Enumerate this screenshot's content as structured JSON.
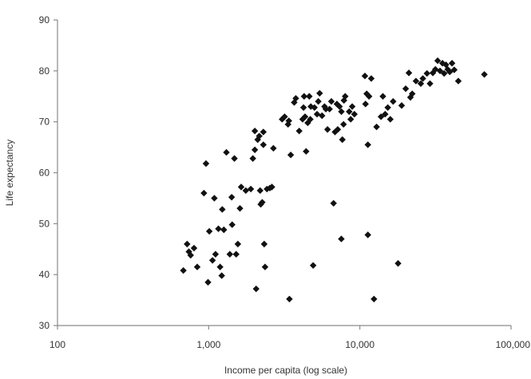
{
  "chart_data": {
    "type": "scatter",
    "title": "",
    "xlabel": "Income per capita (log scale)",
    "ylabel": "Life expectancy",
    "x_scale": "log",
    "xlim": [
      100,
      100000
    ],
    "ylim": [
      30,
      90
    ],
    "x_ticks": [
      100,
      1000,
      10000,
      100000
    ],
    "x_tick_labels": [
      "100",
      "1,000",
      "10,000",
      "100,000"
    ],
    "y_ticks": [
      30,
      40,
      50,
      60,
      70,
      80,
      90
    ],
    "y_tick_labels": [
      "30",
      "40",
      "50",
      "60",
      "70",
      "80",
      "90"
    ],
    "grid": false,
    "marker": "diamond",
    "marker_color": "#111111",
    "points": [
      [
        680,
        40.8
      ],
      [
        720,
        46
      ],
      [
        740,
        44.5
      ],
      [
        760,
        43.8
      ],
      [
        800,
        45.2
      ],
      [
        840,
        41.5
      ],
      [
        930,
        56
      ],
      [
        960,
        61.8
      ],
      [
        990,
        38.5
      ],
      [
        1010,
        48.5
      ],
      [
        1060,
        42.8
      ],
      [
        1090,
        55
      ],
      [
        1110,
        44
      ],
      [
        1160,
        49
      ],
      [
        1190,
        41.5
      ],
      [
        1220,
        39.8
      ],
      [
        1230,
        52.8
      ],
      [
        1260,
        48.8
      ],
      [
        1310,
        64
      ],
      [
        1380,
        44
      ],
      [
        1420,
        55.2
      ],
      [
        1430,
        49.8
      ],
      [
        1480,
        62.8
      ],
      [
        1520,
        44
      ],
      [
        1560,
        46
      ],
      [
        1610,
        53
      ],
      [
        1640,
        57.2
      ],
      [
        1760,
        56.5
      ],
      [
        1900,
        56.8
      ],
      [
        1960,
        62.8
      ],
      [
        2020,
        68.2
      ],
      [
        2020,
        64.5
      ],
      [
        2060,
        37.2
      ],
      [
        2110,
        66.5
      ],
      [
        2160,
        67.2
      ],
      [
        2190,
        56.5
      ],
      [
        2210,
        53.8
      ],
      [
        2260,
        54.2
      ],
      [
        2300,
        65.5
      ],
      [
        2300,
        68
      ],
      [
        2330,
        46
      ],
      [
        2360,
        41.5
      ],
      [
        2430,
        56.8
      ],
      [
        2540,
        57
      ],
      [
        2620,
        57.2
      ],
      [
        2680,
        64.8
      ],
      [
        3060,
        70.5
      ],
      [
        3180,
        71
      ],
      [
        3350,
        69.5
      ],
      [
        3390,
        70.2
      ],
      [
        3420,
        35.2
      ],
      [
        3490,
        63.5
      ],
      [
        3680,
        73.8
      ],
      [
        3770,
        74.6
      ],
      [
        3970,
        68.2
      ],
      [
        4180,
        70.5
      ],
      [
        4240,
        72.8
      ],
      [
        4280,
        75
      ],
      [
        4340,
        71
      ],
      [
        4410,
        64.2
      ],
      [
        4520,
        69.8
      ],
      [
        4630,
        75
      ],
      [
        4700,
        70.5
      ],
      [
        4740,
        73
      ],
      [
        4910,
        41.8
      ],
      [
        5010,
        72.8
      ],
      [
        5210,
        71.5
      ],
      [
        5310,
        74
      ],
      [
        5420,
        75.6
      ],
      [
        5620,
        71.2
      ],
      [
        5840,
        73
      ],
      [
        5960,
        72.5
      ],
      [
        6110,
        68.5
      ],
      [
        6300,
        72.5
      ],
      [
        6480,
        74
      ],
      [
        6700,
        54
      ],
      [
        6850,
        68
      ],
      [
        7050,
        73.5
      ],
      [
        7140,
        68.5
      ],
      [
        7340,
        73
      ],
      [
        7540,
        47
      ],
      [
        7550,
        72
      ],
      [
        7660,
        66.5
      ],
      [
        7800,
        69.5
      ],
      [
        7850,
        74.2
      ],
      [
        8000,
        75
      ],
      [
        8500,
        72
      ],
      [
        8700,
        70.5
      ],
      [
        8900,
        73
      ],
      [
        9200,
        71.5
      ],
      [
        10800,
        79
      ],
      [
        10900,
        73.5
      ],
      [
        11100,
        75.5
      ],
      [
        11300,
        65.5
      ],
      [
        11300,
        47.8
      ],
      [
        11500,
        75
      ],
      [
        11900,
        78.5
      ],
      [
        12400,
        35.2
      ],
      [
        12900,
        69
      ],
      [
        13800,
        71
      ],
      [
        14200,
        75
      ],
      [
        14700,
        71.5
      ],
      [
        15300,
        72.8
      ],
      [
        15900,
        70.5
      ],
      [
        16600,
        74
      ],
      [
        17900,
        42.2
      ],
      [
        18900,
        73.2
      ],
      [
        20100,
        76.5
      ],
      [
        21100,
        79.6
      ],
      [
        21600,
        74.8
      ],
      [
        22200,
        75.5
      ],
      [
        23500,
        78
      ],
      [
        25300,
        77.5
      ],
      [
        26100,
        78.5
      ],
      [
        27800,
        79.5
      ],
      [
        29100,
        77.5
      ],
      [
        30400,
        79.6
      ],
      [
        31600,
        80.3
      ],
      [
        32700,
        82
      ],
      [
        33900,
        80
      ],
      [
        35200,
        81.5
      ],
      [
        36100,
        79.5
      ],
      [
        37100,
        81.2
      ],
      [
        38100,
        80.3
      ],
      [
        39300,
        79.8
      ],
      [
        40700,
        81.5
      ],
      [
        42100,
        80.2
      ],
      [
        44800,
        78
      ],
      [
        66600,
        79.3
      ]
    ]
  }
}
